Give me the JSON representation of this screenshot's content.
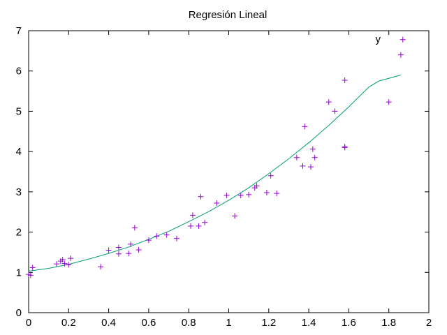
{
  "chart_data": {
    "type": "scatter",
    "title": "Regresión Lineal",
    "xlabel": "",
    "ylabel": "",
    "xlim": [
      0,
      2
    ],
    "ylim": [
      0,
      7
    ],
    "xticks": [
      "0",
      "0.2",
      "0.4",
      "0.6",
      "0.8",
      "1",
      "1.2",
      "1.4",
      "1.6",
      "1.8",
      "2"
    ],
    "yticks": [
      "0",
      "1",
      "2",
      "3",
      "4",
      "5",
      "6",
      "7"
    ],
    "grid": false,
    "legend_position": "top-right",
    "series": [
      {
        "name": "y",
        "kind": "points",
        "marker": "plus",
        "color": "#9400d3",
        "points": [
          [
            0.0,
            0.95
          ],
          [
            0.01,
            0.93
          ],
          [
            0.02,
            1.12
          ],
          [
            0.14,
            1.21
          ],
          [
            0.16,
            1.28
          ],
          [
            0.17,
            1.32
          ],
          [
            0.18,
            1.22
          ],
          [
            0.2,
            1.19
          ],
          [
            0.21,
            1.35
          ],
          [
            0.36,
            1.14
          ],
          [
            0.4,
            1.55
          ],
          [
            0.45,
            1.62
          ],
          [
            0.45,
            1.46
          ],
          [
            0.5,
            1.47
          ],
          [
            0.51,
            1.7
          ],
          [
            0.53,
            2.11
          ],
          [
            0.55,
            1.56
          ],
          [
            0.6,
            1.8
          ],
          [
            0.64,
            1.9
          ],
          [
            0.69,
            1.93
          ],
          [
            0.74,
            1.84
          ],
          [
            0.81,
            2.15
          ],
          [
            0.82,
            2.42
          ],
          [
            0.85,
            2.15
          ],
          [
            0.86,
            2.88
          ],
          [
            0.88,
            2.24
          ],
          [
            0.94,
            2.72
          ],
          [
            0.99,
            2.91
          ],
          [
            1.03,
            2.4
          ],
          [
            1.06,
            2.91
          ],
          [
            1.1,
            2.93
          ],
          [
            1.13,
            3.1
          ],
          [
            1.14,
            3.15
          ],
          [
            1.19,
            2.98
          ],
          [
            1.21,
            3.4
          ],
          [
            1.24,
            2.96
          ],
          [
            1.34,
            3.85
          ],
          [
            1.37,
            3.64
          ],
          [
            1.38,
            4.62
          ],
          [
            1.41,
            3.62
          ],
          [
            1.42,
            4.06
          ],
          [
            1.43,
            3.85
          ],
          [
            1.5,
            5.23
          ],
          [
            1.53,
            5.0
          ],
          [
            1.58,
            5.77
          ],
          [
            1.58,
            4.12
          ],
          [
            1.58,
            4.1
          ],
          [
            1.8,
            5.23
          ],
          [
            1.86,
            6.4
          ],
          [
            1.87,
            6.78
          ]
        ]
      },
      {
        "name": "",
        "kind": "curve",
        "color": "#009e73",
        "points": [
          [
            0.0,
            1.03
          ],
          [
            0.1,
            1.1
          ],
          [
            0.2,
            1.2
          ],
          [
            0.3,
            1.33
          ],
          [
            0.4,
            1.47
          ],
          [
            0.5,
            1.63
          ],
          [
            0.6,
            1.82
          ],
          [
            0.7,
            2.02
          ],
          [
            0.8,
            2.26
          ],
          [
            0.9,
            2.51
          ],
          [
            1.0,
            2.79
          ],
          [
            1.1,
            3.1
          ],
          [
            1.2,
            3.45
          ],
          [
            1.3,
            3.82
          ],
          [
            1.4,
            4.22
          ],
          [
            1.5,
            4.65
          ],
          [
            1.6,
            5.11
          ],
          [
            1.7,
            5.6
          ],
          [
            1.75,
            5.75
          ],
          [
            1.86,
            5.9
          ]
        ]
      }
    ]
  }
}
